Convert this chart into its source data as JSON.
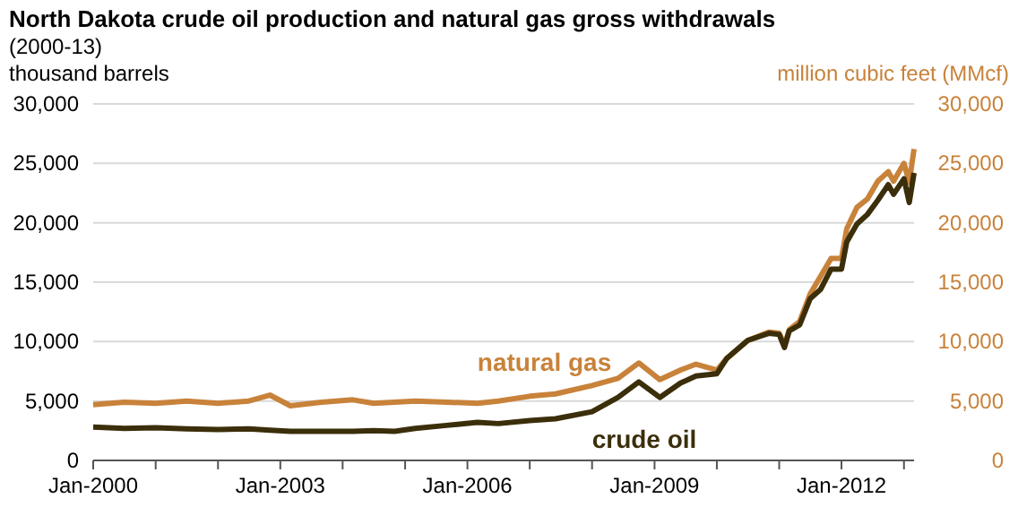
{
  "chart_data": {
    "type": "line",
    "title": "North Dakota crude oil production and natural gas gross  withdrawals",
    "subtitle": "(2000-13)",
    "ylabel": "thousand barrels",
    "y2label": "million cubic feet (MMcf)",
    "x": [
      "2000-01",
      "2000-07",
      "2001-01",
      "2001-07",
      "2002-01",
      "2002-07",
      "2002-11",
      "2003-03",
      "2003-09",
      "2004-03",
      "2004-07",
      "2004-11",
      "2005-03",
      "2005-09",
      "2006-03",
      "2006-07",
      "2007-01",
      "2007-06",
      "2008-01",
      "2008-06",
      "2008-10",
      "2009-02",
      "2009-06",
      "2009-09",
      "2010-01",
      "2010-03",
      "2010-07",
      "2010-11",
      "2011-01",
      "2011-02",
      "2011-03",
      "2011-05",
      "2011-07",
      "2011-09",
      "2011-11",
      "2012-01",
      "2012-02",
      "2012-04",
      "2012-06",
      "2012-08",
      "2012-10",
      "2012-11",
      "2013-01",
      "2013-02",
      "2013-03"
    ],
    "series": [
      {
        "name": "natural gas",
        "color": "#c8823a",
        "axis": "y2",
        "values": [
          4700,
          4900,
          4800,
          5000,
          4800,
          5000,
          5500,
          4600,
          4900,
          5100,
          4800,
          4900,
          5000,
          4900,
          4800,
          5000,
          5400,
          5600,
          6300,
          6900,
          8200,
          6800,
          7600,
          8100,
          7600,
          8600,
          10100,
          10800,
          10700,
          9700,
          11000,
          11700,
          14000,
          15500,
          17000,
          17000,
          19500,
          21300,
          22000,
          23500,
          24300,
          23500,
          25000,
          23400,
          26200
        ]
      },
      {
        "name": "crude oil",
        "color": "#3b2e0a",
        "values": [
          2800,
          2700,
          2750,
          2650,
          2600,
          2650,
          2550,
          2450,
          2450,
          2450,
          2500,
          2450,
          2700,
          2950,
          3200,
          3100,
          3350,
          3500,
          4100,
          5300,
          6600,
          5300,
          6500,
          7100,
          7300,
          8600,
          10100,
          10700,
          10600,
          9500,
          10900,
          11400,
          13600,
          14400,
          16100,
          16100,
          18400,
          19900,
          20700,
          21900,
          23200,
          22400,
          23700,
          21700,
          24200
        ]
      }
    ],
    "xlim": [
      "2000-01",
      "2013-03"
    ],
    "xticks": [
      {
        "value": "2000-01",
        "label": "Jan-2000"
      },
      {
        "value": "2001-01",
        "label": null
      },
      {
        "value": "2002-01",
        "label": null
      },
      {
        "value": "2003-01",
        "label": "Jan-2003"
      },
      {
        "value": "2004-01",
        "label": null
      },
      {
        "value": "2005-01",
        "label": null
      },
      {
        "value": "2006-01",
        "label": "Jan-2006"
      },
      {
        "value": "2007-01",
        "label": null
      },
      {
        "value": "2008-01",
        "label": null
      },
      {
        "value": "2009-01",
        "label": "Jan-2009"
      },
      {
        "value": "2010-01",
        "label": null
      },
      {
        "value": "2011-01",
        "label": null
      },
      {
        "value": "2012-01",
        "label": "Jan-2012"
      },
      {
        "value": "2013-01",
        "label": null
      }
    ],
    "ylim": [
      0,
      30000
    ],
    "yticks": [
      0,
      {
        "value": 5000,
        "label": "5,000"
      },
      {
        "value": 10000,
        "label": "10,000"
      },
      {
        "value": 15000,
        "label": "15,000"
      },
      {
        "value": 20000,
        "label": "20,000"
      },
      {
        "value": 25000,
        "label": "25,000"
      },
      {
        "value": 30000,
        "label": "30,000"
      }
    ],
    "y2lim": [
      0,
      30000
    ],
    "y2ticks": [
      0,
      {
        "value": 5000,
        "label": "5,000"
      },
      {
        "value": 10000,
        "label": "10,000"
      },
      {
        "value": 15000,
        "label": "15,000"
      },
      {
        "value": 20000,
        "label": "20,000"
      },
      {
        "value": 25000,
        "label": "25,000"
      },
      {
        "value": 30000,
        "label": "30,000"
      }
    ],
    "grid": "y",
    "line_style": "solid",
    "marker": "none"
  }
}
